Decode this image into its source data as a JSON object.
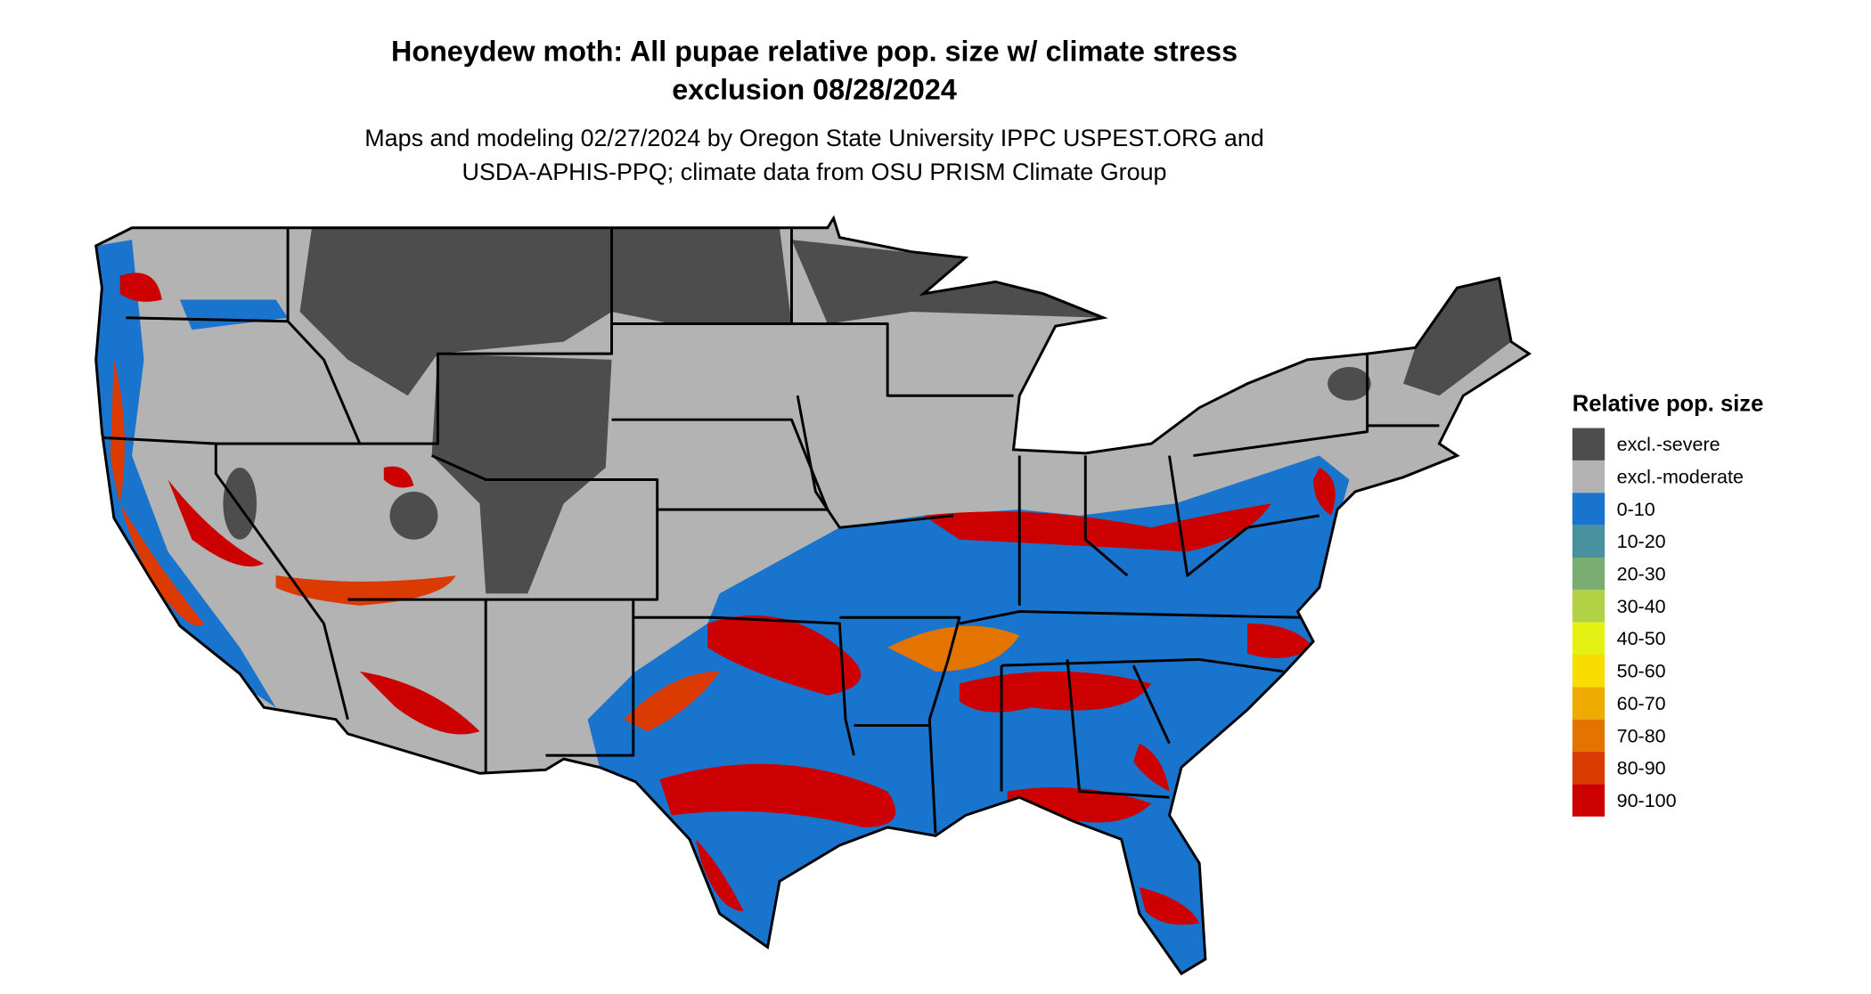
{
  "title": {
    "line1": "Honeydew moth: All pupae relative pop. size w/ climate stress",
    "line2": "exclusion 08/28/2024"
  },
  "subtitle": {
    "line1": "Maps and modeling 02/27/2024 by Oregon State University IPPC USPEST.ORG and",
    "line2": "USDA-APHIS-PPQ; climate data from OSU PRISM Climate Group"
  },
  "legend": {
    "title": "Relative pop. size",
    "items": [
      {
        "label": "excl.-severe",
        "color": "#4d4d4d"
      },
      {
        "label": "excl.-moderate",
        "color": "#b3b3b3"
      },
      {
        "label": "0-10",
        "color": "#1874cd"
      },
      {
        "label": "10-20",
        "color": "#48909e"
      },
      {
        "label": "20-30",
        "color": "#7bad72"
      },
      {
        "label": "30-40",
        "color": "#b2d145"
      },
      {
        "label": "40-50",
        "color": "#e5f014"
      },
      {
        "label": "50-60",
        "color": "#f8de00"
      },
      {
        "label": "60-70",
        "color": "#efab00"
      },
      {
        "label": "70-80",
        "color": "#e37400"
      },
      {
        "label": "80-90",
        "color": "#db3a00"
      },
      {
        "label": "90-100",
        "color": "#cc0000"
      }
    ]
  }
}
